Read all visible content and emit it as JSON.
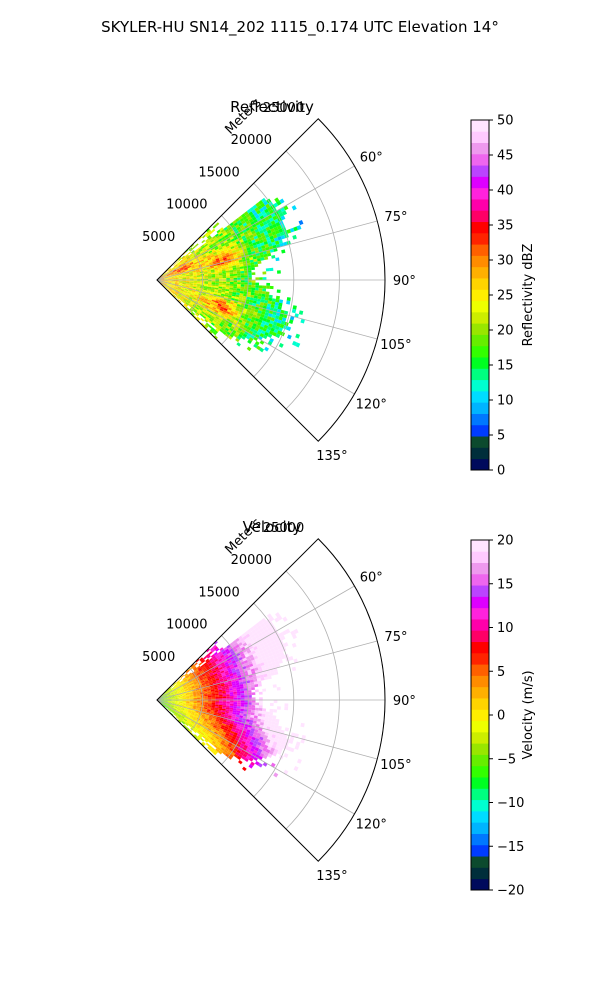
{
  "suptitle": "SKYLER-HU  SN14_202  1115_0.174 UTC Elevation 14°",
  "chart_data": [
    {
      "type": "polar-sector",
      "title": "Reflectivity",
      "range_label": "Meters",
      "range_ticks": [
        5000,
        10000,
        15000,
        20000,
        25000
      ],
      "angle_ticks": [
        "60°",
        "75°",
        "90°",
        "105°",
        "120°",
        "135°"
      ],
      "angle_values": [
        60,
        75,
        90,
        105,
        120,
        135
      ],
      "angle_range": [
        45,
        135
      ],
      "max_range": 25000,
      "field": "reflectivity",
      "colorbar": {
        "label": "Reflectivity dBZ",
        "min": 0,
        "max": 50,
        "ticks": [
          0,
          5,
          10,
          15,
          20,
          25,
          30,
          35,
          40,
          45,
          50
        ],
        "tick_labels": [
          "0",
          "5",
          "10",
          "15",
          "20",
          "25",
          "30",
          "35",
          "40",
          "45",
          "50"
        ],
        "colors": [
          "#000a5c",
          "#002e3b",
          "#0c4a2e",
          "#003cff",
          "#0078ff",
          "#00b4ff",
          "#00dcff",
          "#00ffd0",
          "#00ff80",
          "#00ff22",
          "#33ff00",
          "#66ee00",
          "#99e600",
          "#ccee00",
          "#eeff00",
          "#ffee00",
          "#ffd400",
          "#ffb000",
          "#ff8c00",
          "#ff6000",
          "#ff2400",
          "#ff0000",
          "#ff0066",
          "#ff00aa",
          "#ff22dd",
          "#dd00ff",
          "#bb44ff",
          "#ee66ee",
          "#ee99ee",
          "#ffcaff",
          "#ffe4ff"
        ]
      }
    },
    {
      "type": "polar-sector",
      "title": "Velocity",
      "range_label": "Meters",
      "range_ticks": [
        5000,
        10000,
        15000,
        20000,
        25000
      ],
      "angle_ticks": [
        "60°",
        "75°",
        "90°",
        "105°",
        "120°",
        "135°"
      ],
      "angle_values": [
        60,
        75,
        90,
        105,
        120,
        135
      ],
      "angle_range": [
        45,
        135
      ],
      "max_range": 25000,
      "field": "velocity",
      "colorbar": {
        "label": "Velocity (m/s)",
        "min": -20,
        "max": 20,
        "ticks": [
          -20,
          -15,
          -10,
          -5,
          0,
          5,
          10,
          15,
          20
        ],
        "tick_labels": [
          "−20",
          "−15",
          "−10",
          "−5",
          "0",
          "5",
          "10",
          "15",
          "20"
        ],
        "colors": [
          "#000a5c",
          "#002e3b",
          "#0c4a2e",
          "#003cff",
          "#0078ff",
          "#00b4ff",
          "#00dcff",
          "#00ffd0",
          "#00ff80",
          "#00ff22",
          "#33ff00",
          "#66ee00",
          "#99e600",
          "#ccee00",
          "#eeff00",
          "#ffee00",
          "#ffd400",
          "#ffb000",
          "#ff8c00",
          "#ff6000",
          "#ff2400",
          "#ff0000",
          "#ff0066",
          "#ff00aa",
          "#ff22dd",
          "#dd00ff",
          "#bb44ff",
          "#ee66ee",
          "#ee99ee",
          "#ffcaff",
          "#ffe4ff"
        ]
      }
    }
  ]
}
